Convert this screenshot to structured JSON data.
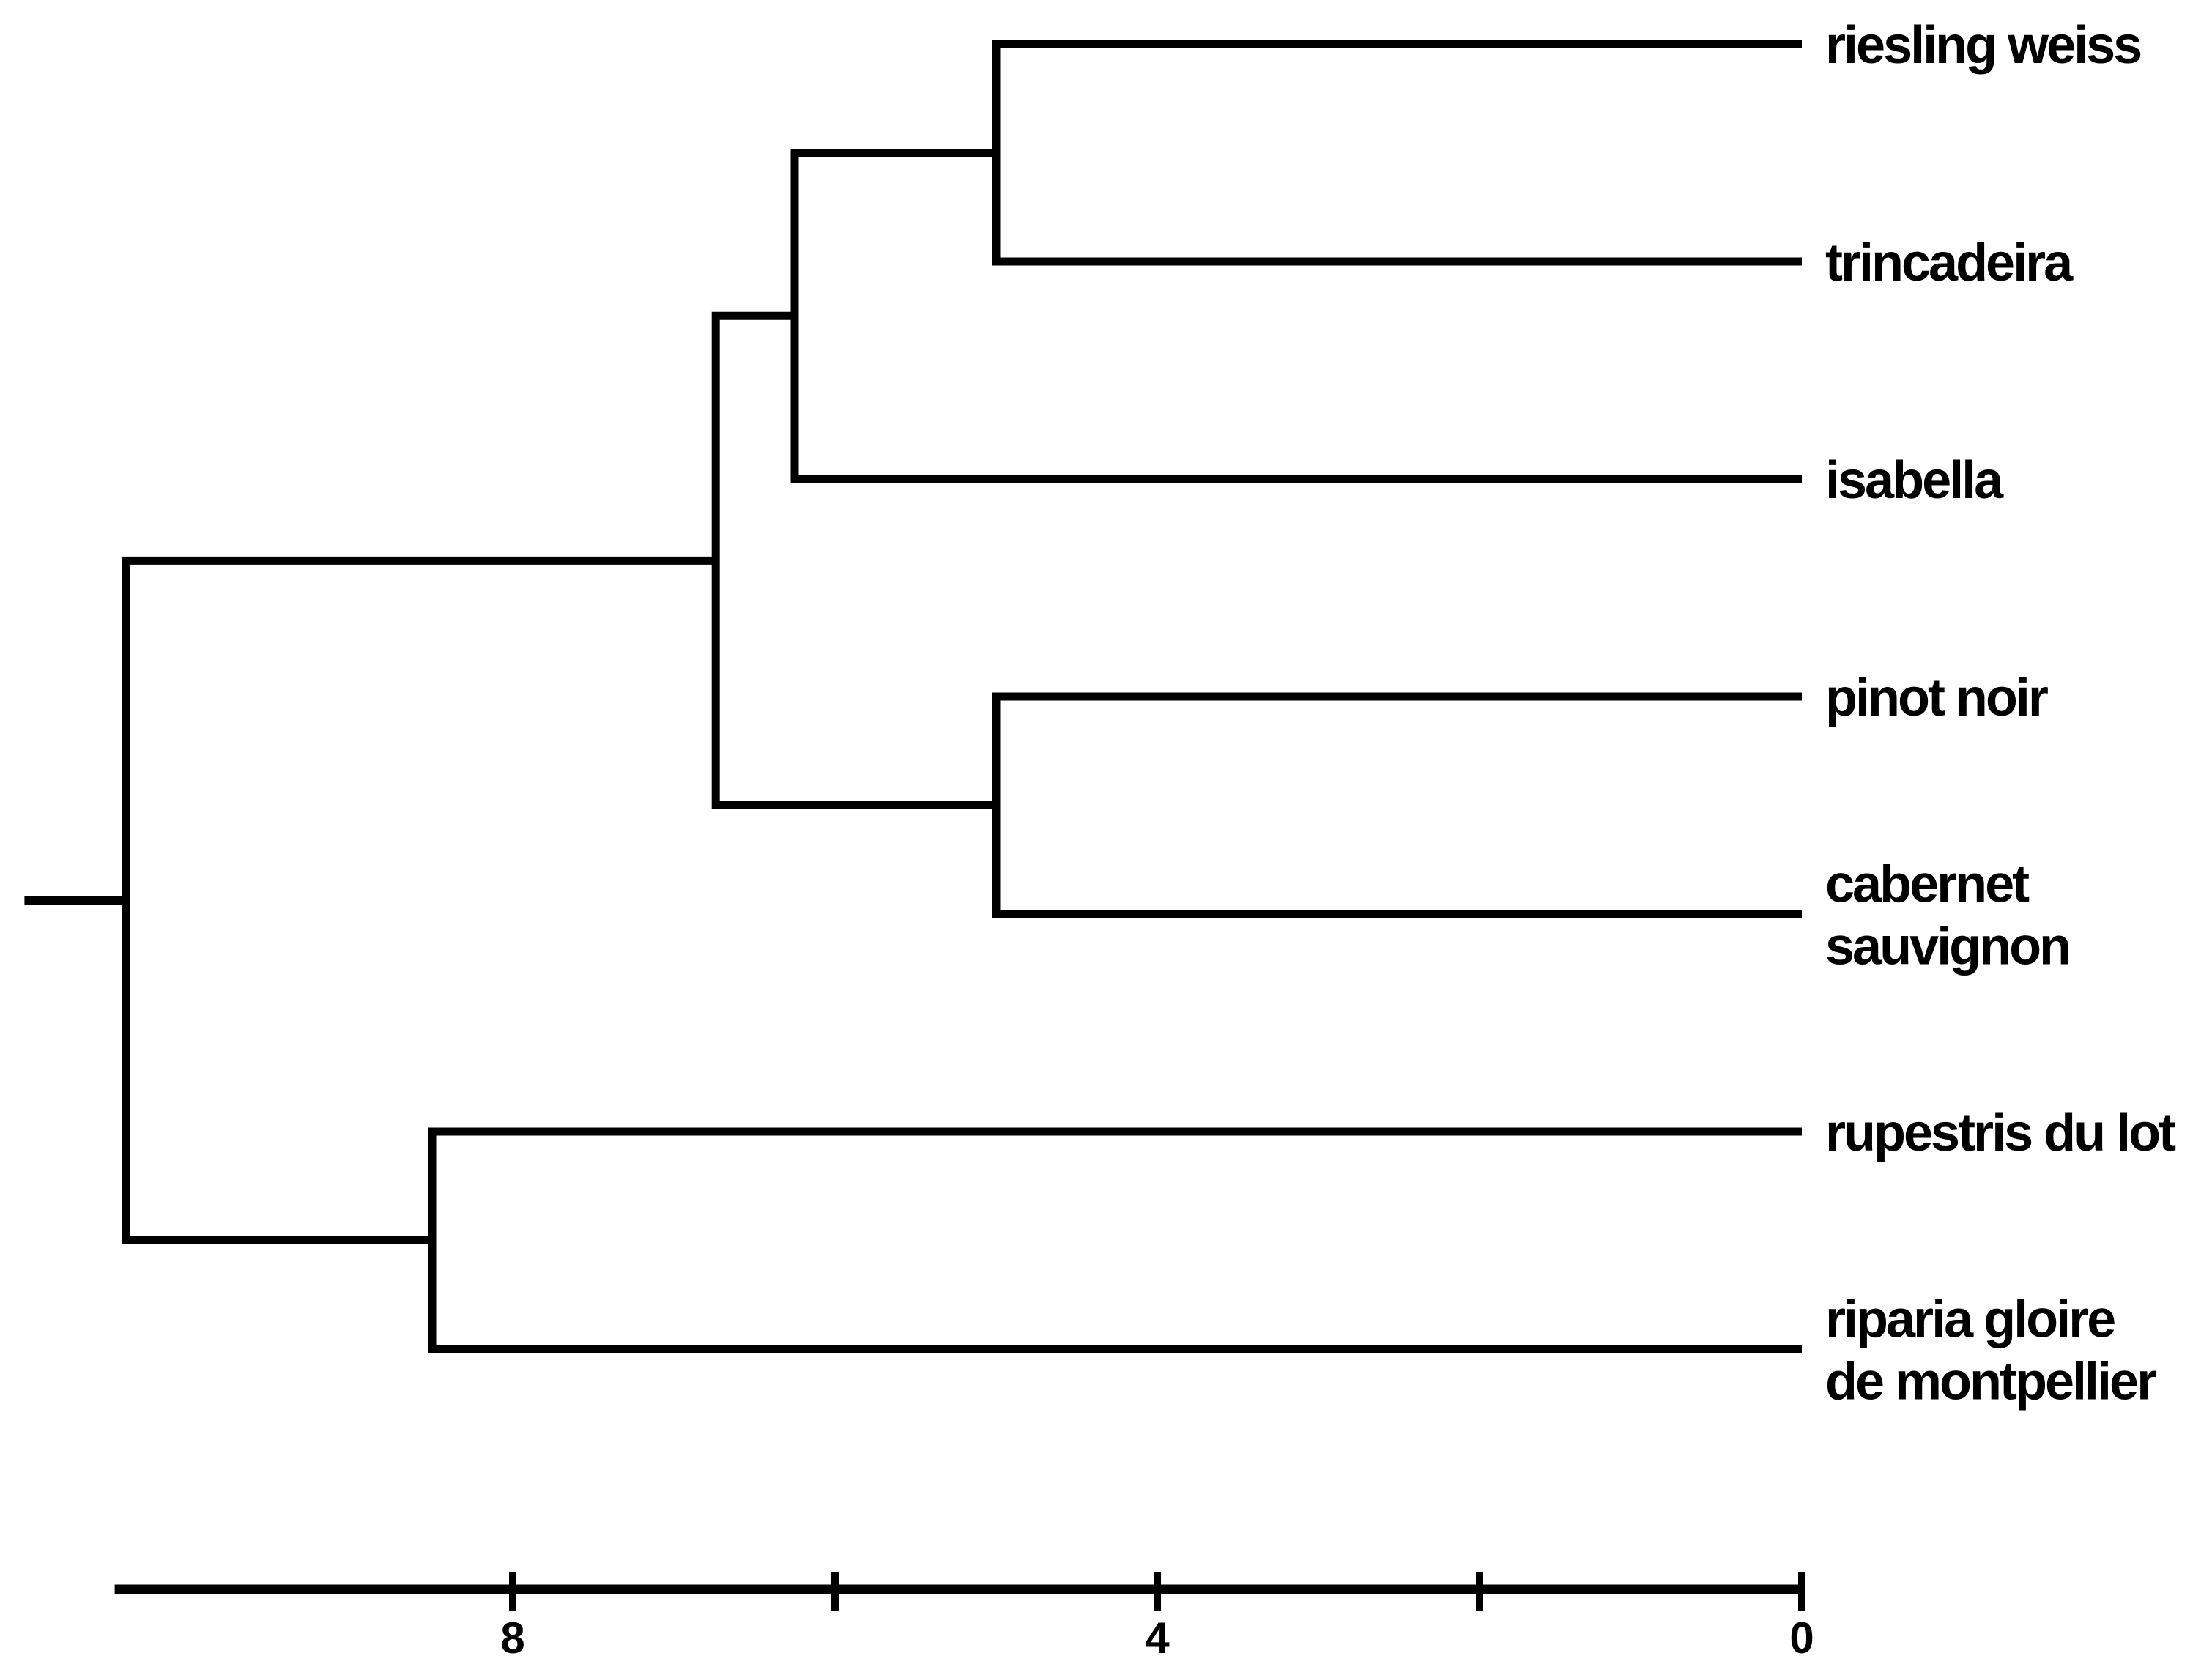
{
  "figure": {
    "background_color": "#ffffff",
    "line_color": "#000000",
    "text_color": "#000000"
  },
  "chart_data": {
    "type": "dendrogram",
    "title": "",
    "orientation": "leaves-right-root-left",
    "legend": "none",
    "grid": false,
    "leaves": [
      {
        "name": "riesling weiss",
        "label_lines": [
          "riesling weiss"
        ]
      },
      {
        "name": "trincadeira",
        "label_lines": [
          "trincadeira"
        ]
      },
      {
        "name": "isabella",
        "label_lines": [
          "isabella"
        ]
      },
      {
        "name": "pinot noir",
        "label_lines": [
          "pinot noir"
        ]
      },
      {
        "name": "cabernet sauvignon",
        "label_lines": [
          "cabernet",
          "sauvignon"
        ]
      },
      {
        "name": "rupestris du lot",
        "label_lines": [
          "rupestris du lot"
        ]
      },
      {
        "name": "riparia gloire de montpellier",
        "label_lines": [
          "riparia gloire",
          "de montpellier"
        ]
      }
    ],
    "tree": {
      "height": 10.4,
      "root_tail_height": 11.03,
      "children": [
        {
          "height": 6.74,
          "children": [
            {
              "height": 6.25,
              "children": [
                {
                  "height": 5.0,
                  "children": [
                    {
                      "leaf": 0
                    },
                    {
                      "leaf": 1
                    }
                  ]
                },
                {
                  "leaf": 2
                }
              ]
            },
            {
              "height": 5.0,
              "children": [
                {
                  "leaf": 3
                },
                {
                  "leaf": 4
                }
              ]
            }
          ]
        },
        {
          "height": 8.5,
          "children": [
            {
              "leaf": 5
            },
            {
              "leaf": 6
            }
          ]
        }
      ]
    },
    "axis": {
      "position": "bottom",
      "value_direction": "decreasing-to-right",
      "range": [
        10.47,
        0
      ],
      "ticks": [
        {
          "value": 8,
          "label": "8"
        },
        {
          "value": 6,
          "label": ""
        },
        {
          "value": 4,
          "label": "4"
        },
        {
          "value": 2,
          "label": ""
        },
        {
          "value": 0,
          "label": "0"
        }
      ]
    }
  }
}
